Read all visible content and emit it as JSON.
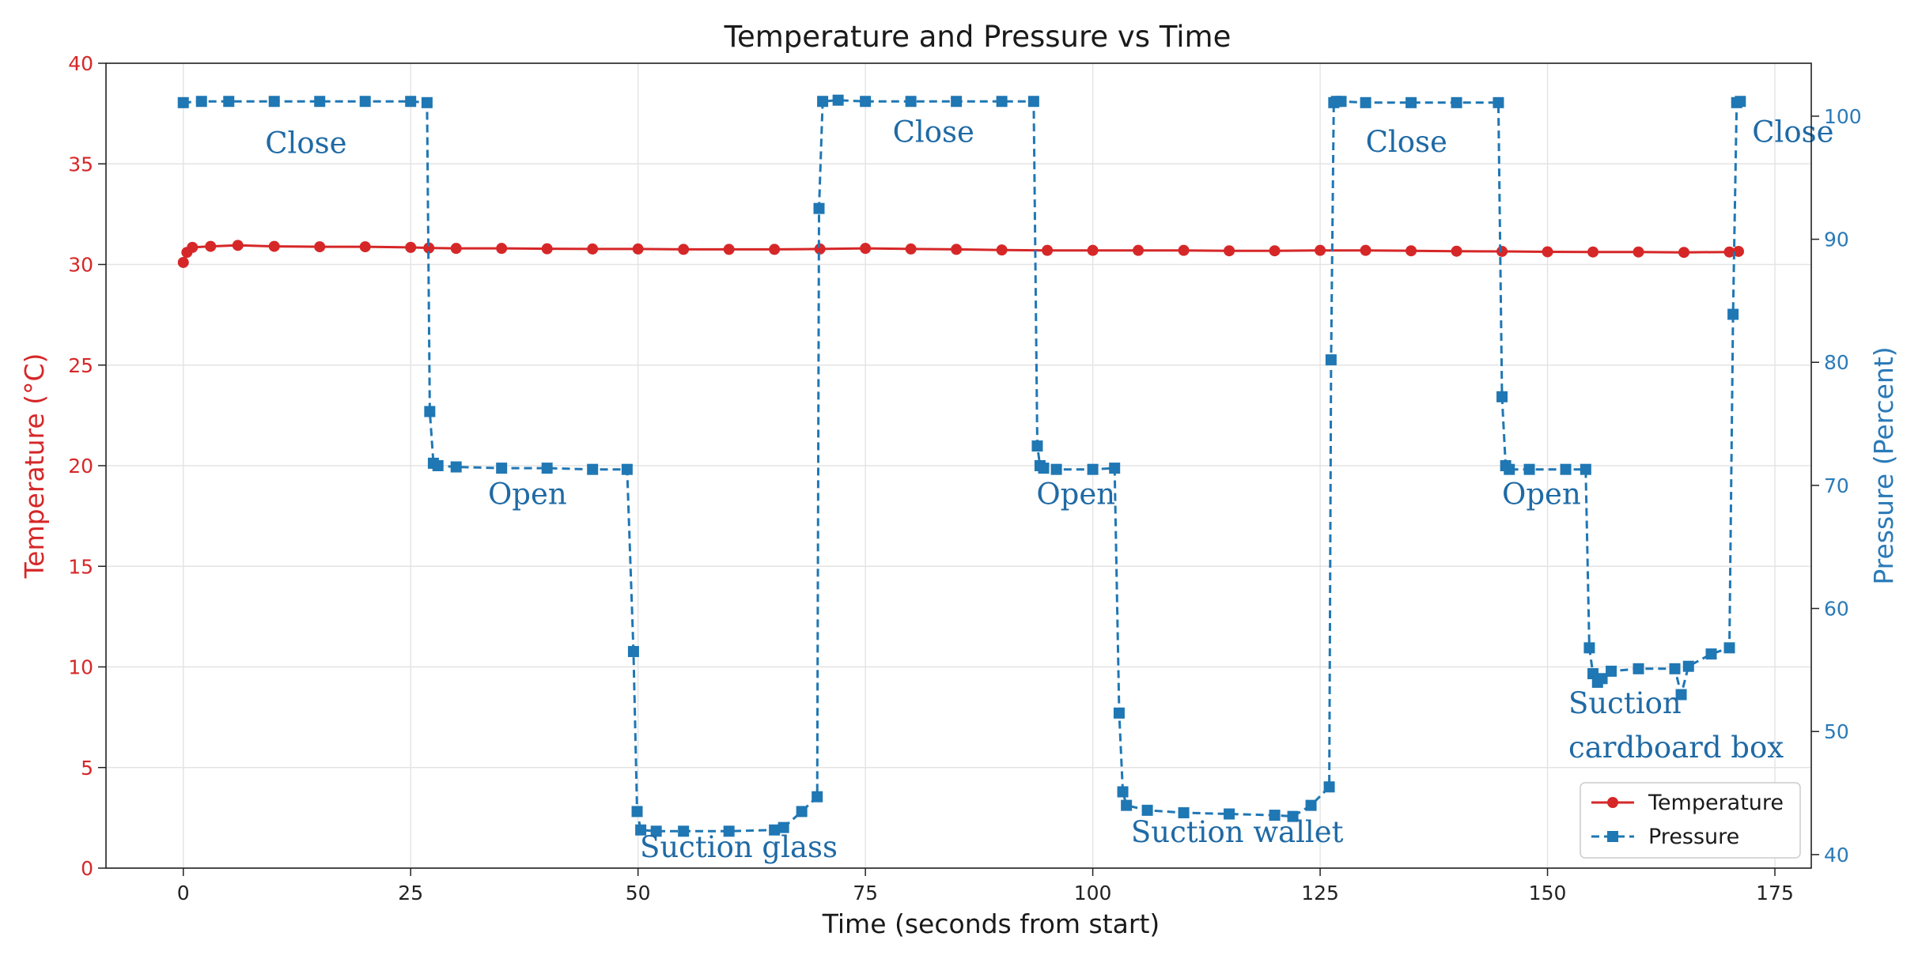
{
  "chart_data": {
    "type": "line",
    "title": "Temperature and Pressure vs Time",
    "xlabel": "Time (seconds from start)",
    "ylabel_left": "Temperature (°C)",
    "ylabel_right": "Pressure (Percent)",
    "xlim": [
      -8.5,
      179
    ],
    "ylim_left": [
      0,
      40
    ],
    "ylim_right": [
      38.9,
      104.3
    ],
    "x_ticks": [
      0,
      25,
      50,
      75,
      100,
      125,
      150,
      175
    ],
    "y_ticks_left": [
      0,
      5,
      10,
      15,
      20,
      25,
      30,
      35,
      40
    ],
    "y_ticks_right": [
      40,
      50,
      60,
      70,
      80,
      90,
      100
    ],
    "grid": true,
    "legend_position": "lower-right",
    "colors": {
      "temperature": "#d62728",
      "pressure": "#1f77b4",
      "left_axis": "#d62728",
      "right_axis": "#2a7ab8",
      "annotation": "#1f6aa5"
    },
    "series": [
      {
        "name": "Temperature",
        "axis": "left",
        "style": "solid-circle",
        "x": [
          0,
          0.4,
          1,
          3,
          6,
          10,
          15,
          20,
          25,
          27,
          30,
          35,
          40,
          45,
          50,
          55,
          60,
          65,
          70,
          75,
          80,
          85,
          90,
          95,
          100,
          105,
          110,
          115,
          120,
          125,
          130,
          135,
          140,
          145,
          150,
          155,
          160,
          165,
          170,
          171
        ],
        "values": [
          30.1,
          30.6,
          30.85,
          30.9,
          30.95,
          30.9,
          30.88,
          30.88,
          30.85,
          30.82,
          30.8,
          30.8,
          30.78,
          30.77,
          30.77,
          30.75,
          30.75,
          30.75,
          30.77,
          30.8,
          30.77,
          30.75,
          30.72,
          30.7,
          30.7,
          30.7,
          30.7,
          30.68,
          30.68,
          30.7,
          30.7,
          30.68,
          30.66,
          30.65,
          30.63,
          30.62,
          30.62,
          30.6,
          30.62,
          30.65
        ]
      },
      {
        "name": "Pressure",
        "axis": "right",
        "style": "dashed-square",
        "x": [
          0,
          2,
          5,
          10,
          15,
          20,
          25,
          26.8,
          27.1,
          27.5,
          28,
          30,
          35,
          40,
          45,
          48.8,
          49.5,
          49.9,
          50.3,
          52,
          55,
          60,
          65,
          66,
          68,
          69.7,
          69.9,
          70.3,
          72,
          75,
          80,
          85,
          90,
          93.5,
          93.9,
          94.2,
          94.6,
          96,
          100,
          102.4,
          102.9,
          103.3,
          103.7,
          106,
          110,
          115,
          120,
          122,
          124,
          126,
          126.2,
          126.5,
          126.8,
          127.3,
          130,
          135,
          140,
          144.6,
          145,
          145.4,
          145.8,
          148,
          152,
          154.2,
          154.6,
          155,
          155.5,
          156,
          157,
          160,
          164,
          164.7,
          165.5,
          168,
          170,
          170.4,
          170.8,
          171.2
        ],
        "values": [
          101.1,
          101.2,
          101.2,
          101.2,
          101.2,
          101.2,
          101.2,
          101.1,
          76,
          71.8,
          71.6,
          71.5,
          71.4,
          71.4,
          71.3,
          71.3,
          56.5,
          43.5,
          42,
          41.9,
          41.9,
          41.9,
          42,
          42.2,
          43.5,
          44.7,
          92.5,
          101.2,
          101.3,
          101.2,
          101.2,
          101.2,
          101.2,
          101.2,
          73.2,
          71.6,
          71.4,
          71.3,
          71.3,
          71.4,
          51.5,
          45.1,
          44,
          43.6,
          43.4,
          43.3,
          43.2,
          43.1,
          44,
          45.5,
          80.2,
          101.1,
          101.2,
          101.2,
          101.1,
          101.1,
          101.1,
          101.1,
          77.2,
          71.6,
          71.3,
          71.3,
          71.3,
          71.3,
          56.8,
          54.7,
          54.0,
          54.3,
          54.9,
          55.1,
          55.1,
          53.0,
          55.3,
          56.3,
          56.8,
          83.9,
          101.1,
          101.2
        ]
      }
    ],
    "annotations": [
      {
        "text": "Close",
        "x": 9,
        "y_left": 35.55
      },
      {
        "text": "Open",
        "x": 33.5,
        "y_left": 18.1
      },
      {
        "text": "Suction glass",
        "x": 50.2,
        "y_left": 0.55
      },
      {
        "text": "Close",
        "x": 78,
        "y_left": 36.1
      },
      {
        "text": "Open",
        "x": 93.8,
        "y_left": 18.1
      },
      {
        "text": "Suction wallet",
        "x": 104.2,
        "y_left": 1.3
      },
      {
        "text": "Close",
        "x": 130,
        "y_left": 35.6
      },
      {
        "text": "Open",
        "x": 145,
        "y_left": 18.1
      },
      {
        "text": "Suction",
        "x": 152.3,
        "y_left": 7.7
      },
      {
        "text": "cardboard box",
        "x": 152.3,
        "y_left": 5.5
      },
      {
        "text": "Close",
        "x": 172.5,
        "y_left": 36.1
      }
    ],
    "legend": [
      {
        "label": "Temperature",
        "series": "Temperature"
      },
      {
        "label": "Pressure",
        "series": "Pressure"
      }
    ]
  }
}
